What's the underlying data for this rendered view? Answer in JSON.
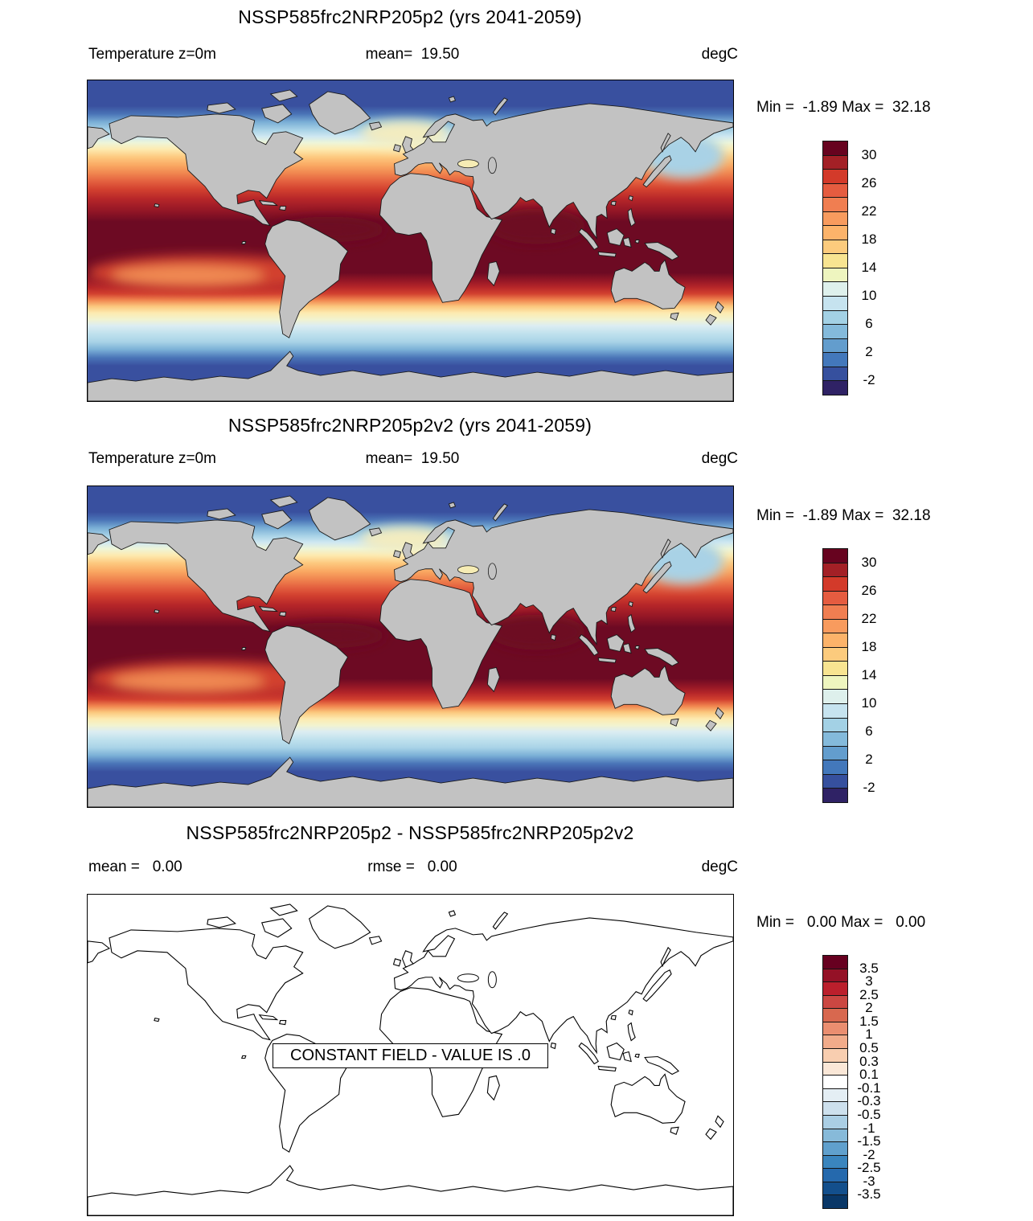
{
  "figure": {
    "background": "#ffffff",
    "land_color": "#c2c2c2",
    "units": "degC"
  },
  "panels": [
    {
      "title": "NSSP585frc2NRP205p2 (yrs 2041-2059)",
      "subtitle_left": "Temperature z=0m",
      "subtitle_center": "mean=  19.50",
      "subtitle_right": "degC",
      "stats": "Min =  -1.89 Max =  32.18",
      "colorbar": {
        "labels": [
          "30",
          "26",
          "22",
          "18",
          "14",
          "10",
          "6",
          "2",
          "-2"
        ],
        "boundaries": [
          1,
          3,
          5,
          7,
          9,
          11,
          13,
          15,
          17
        ],
        "colors": [
          "#67031f",
          "#a32026",
          "#d33a2a",
          "#e55c40",
          "#f07e51",
          "#f89b5e",
          "#fcb36a",
          "#fccb7d",
          "#f8e491",
          "#eef5bf",
          "#def0ec",
          "#c6e3ef",
          "#a3d1e5",
          "#84badb",
          "#639dcd",
          "#4378bb",
          "#36509e",
          "#2f2265"
        ]
      }
    },
    {
      "title": "NSSP585frc2NRP205p2v2 (yrs 2041-2059)",
      "subtitle_left": "Temperature z=0m",
      "subtitle_center": "mean=  19.50",
      "subtitle_right": "degC",
      "stats": "Min =  -1.89 Max =  32.18",
      "colorbar": {
        "labels": [
          "30",
          "26",
          "22",
          "18",
          "14",
          "10",
          "6",
          "2",
          "-2"
        ],
        "boundaries": [
          1,
          3,
          5,
          7,
          9,
          11,
          13,
          15,
          17
        ],
        "colors": [
          "#67031f",
          "#a32026",
          "#d33a2a",
          "#e55c40",
          "#f07e51",
          "#f89b5e",
          "#fcb36a",
          "#fccb7d",
          "#f8e491",
          "#eef5bf",
          "#def0ec",
          "#c6e3ef",
          "#a3d1e5",
          "#84badb",
          "#639dcd",
          "#4378bb",
          "#36509e",
          "#2f2265"
        ]
      }
    },
    {
      "title": "NSSP585frc2NRP205p2 - NSSP585frc2NRP205p2v2",
      "subtitle_left": "mean =   0.00",
      "subtitle_center": "rmse =   0.00",
      "subtitle_right": "degC",
      "stats": "Min =   0.00 Max =   0.00",
      "annotation": "CONSTANT FIELD - VALUE IS .0",
      "colorbar": {
        "labels": [
          "3.5",
          "3",
          "2.5",
          "2",
          "1.5",
          "1",
          "0.5",
          "0.3",
          "0.1",
          "-0.1",
          "-0.3",
          "-0.5",
          "-1",
          "-1.5",
          "-2",
          "-2.5",
          "-3",
          "-3.5"
        ],
        "boundaries": [
          1,
          2,
          3,
          4,
          5,
          6,
          7,
          8,
          9,
          10,
          11,
          12,
          13,
          14,
          15,
          16,
          17,
          18
        ],
        "colors": [
          "#670020",
          "#941126",
          "#bb1f2c",
          "#cb4742",
          "#d8684f",
          "#ea8e70",
          "#f1ab8a",
          "#f8ceb0",
          "#fae7d7",
          "#ffffff",
          "#e4eef4",
          "#cde0ed",
          "#aacee4",
          "#87bad9",
          "#60a0cd",
          "#3a85be",
          "#2569ad",
          "#134f8c",
          "#093767"
        ]
      }
    }
  ],
  "chart_data": [
    {
      "type": "heatmap",
      "subtype": "filled-contour global map, equirectangular lat-lon",
      "title": "NSSP585frc2NRP205p2 (yrs 2041-2059)",
      "variable": "Temperature z=0m",
      "units": "degC",
      "statistics": {
        "mean": 19.5,
        "min": -1.89,
        "max": 32.18
      },
      "contour_levels": [
        -4,
        -2,
        0,
        2,
        4,
        6,
        8,
        10,
        12,
        14,
        16,
        18,
        20,
        22,
        24,
        26,
        28,
        30,
        32
      ],
      "colorbar_tick_labels": [
        30,
        26,
        22,
        18,
        14,
        10,
        6,
        2,
        -2
      ],
      "palette_top_to_bottom": [
        "#67031f",
        "#a32026",
        "#d33a2a",
        "#e55c40",
        "#f07e51",
        "#f89b5e",
        "#fcb36a",
        "#fccb7d",
        "#f8e491",
        "#eef5bf",
        "#def0ec",
        "#c6e3ef",
        "#a3d1e5",
        "#84badb",
        "#639dcd",
        "#4378bb",
        "#36509e",
        "#2f2265"
      ],
      "land_mask_color": "#c2c2c2",
      "pattern": "warm (dark red >30 degC) tropical band, cooling poleward to < -2 degC dark blue at both poles"
    },
    {
      "type": "heatmap",
      "subtype": "filled-contour global map, equirectangular lat-lon",
      "title": "NSSP585frc2NRP205p2v2 (yrs 2041-2059)",
      "variable": "Temperature z=0m",
      "units": "degC",
      "statistics": {
        "mean": 19.5,
        "min": -1.89,
        "max": 32.18
      },
      "contour_levels": [
        -4,
        -2,
        0,
        2,
        4,
        6,
        8,
        10,
        12,
        14,
        16,
        18,
        20,
        22,
        24,
        26,
        28,
        30,
        32
      ],
      "colorbar_tick_labels": [
        30,
        26,
        22,
        18,
        14,
        10,
        6,
        2,
        -2
      ],
      "palette_top_to_bottom": [
        "#67031f",
        "#a32026",
        "#d33a2a",
        "#e55c40",
        "#f07e51",
        "#f89b5e",
        "#fcb36a",
        "#fccb7d",
        "#f8e491",
        "#eef5bf",
        "#def0ec",
        "#c6e3ef",
        "#a3d1e5",
        "#84badb",
        "#639dcd",
        "#4378bb",
        "#36509e",
        "#2f2265"
      ],
      "land_mask_color": "#c2c2c2",
      "pattern": "identical to panel 1"
    },
    {
      "type": "heatmap",
      "subtype": "difference map (outline only, constant zero field)",
      "title": "NSSP585frc2NRP205p2 - NSSP585frc2NRP205p2v2",
      "units": "degC",
      "statistics": {
        "mean": 0.0,
        "rmse": 0.0,
        "min": 0.0,
        "max": 0.0
      },
      "contour_levels": [
        -3.5,
        -3,
        -2.5,
        -2,
        -1.5,
        -1,
        -0.5,
        -0.3,
        -0.1,
        0.1,
        0.3,
        0.5,
        1,
        1.5,
        2,
        2.5,
        3,
        3.5
      ],
      "palette_top_to_bottom": [
        "#670020",
        "#941126",
        "#bb1f2c",
        "#cb4742",
        "#d8684f",
        "#ea8e70",
        "#f1ab8a",
        "#f8ceb0",
        "#fae7d7",
        "#ffffff",
        "#e4eef4",
        "#cde0ed",
        "#aacee4",
        "#87bad9",
        "#60a0cd",
        "#3a85be",
        "#2569ad",
        "#134f8c",
        "#093767"
      ],
      "annotation": "CONSTANT FIELD - VALUE IS .0"
    }
  ]
}
